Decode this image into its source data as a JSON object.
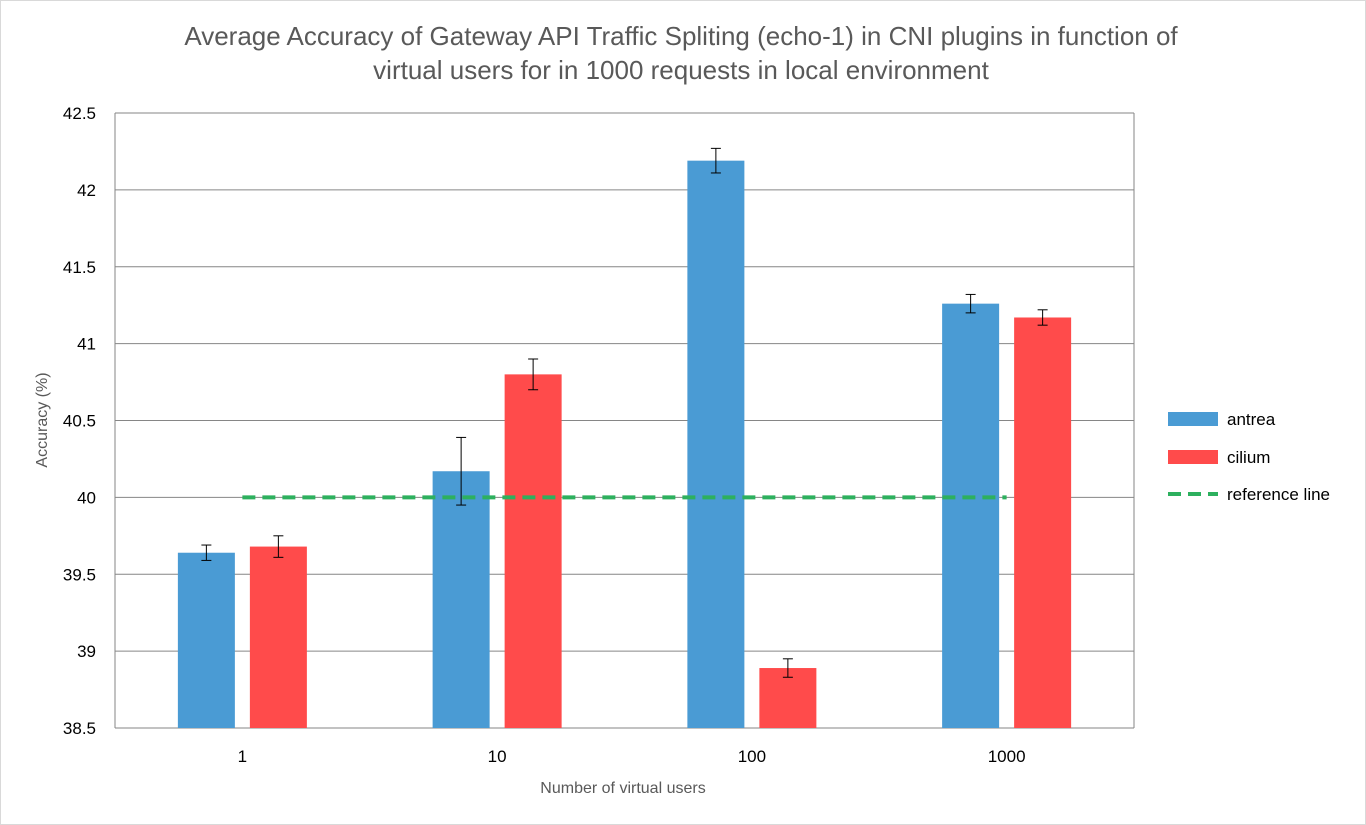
{
  "chart_data": {
    "type": "bar",
    "title_lines": [
      "Average Accuracy of Gateway API Traffic Spliting (echo-1) in CNI plugins in function of",
      "virtual users for in 1000 requests in local environment"
    ],
    "xlabel": "Number of virtual users",
    "ylabel": "Accuracy  (%)",
    "categories": [
      "1",
      "10",
      "100",
      "1000"
    ],
    "ylim": [
      38.5,
      42.5
    ],
    "yticks": [
      "38.5",
      "39",
      "39.5",
      "40",
      "40.5",
      "41",
      "41.5",
      "42",
      "42.5"
    ],
    "grid": true,
    "legend_position": "right",
    "series": [
      {
        "name": "antrea",
        "color": "#4a9bd4",
        "values": [
          39.64,
          40.17,
          42.19,
          41.26
        ],
        "error": [
          0.05,
          0.22,
          0.08,
          0.06
        ]
      },
      {
        "name": "cilium",
        "color": "#ff4b4b",
        "values": [
          39.68,
          40.8,
          38.89,
          41.17
        ],
        "error": [
          0.07,
          0.1,
          0.06,
          0.05
        ]
      }
    ],
    "reference_line": {
      "name": "reference line",
      "value": 40,
      "color": "#2db05e"
    }
  }
}
